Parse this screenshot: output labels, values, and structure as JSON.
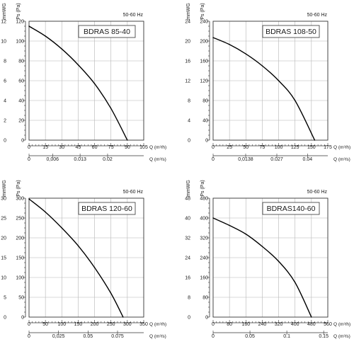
{
  "chart_data": [
    {
      "type": "line",
      "title": "BDRAS 85-40",
      "frequency_label": "50-60 Hz",
      "y_unit_left": "mmWG",
      "y_unit_right": "Ps (Pa)",
      "x_label": "Q (m³/h)",
      "x2_label": "Q (m³/s)",
      "y_left_ticks": [
        "12",
        "10",
        "8",
        "6",
        "4",
        "2",
        "0"
      ],
      "y_right_ticks": [
        "120",
        "100",
        "80",
        "60",
        "40",
        "20",
        "0"
      ],
      "x_ticks": [
        "0",
        "15",
        "30",
        "45",
        "60",
        "75",
        "90",
        "105"
      ],
      "x2_ticks": [
        "0",
        "0,006",
        "0.013",
        "0.02"
      ],
      "xlim": [
        0,
        105
      ],
      "ylim": [
        0,
        120
      ],
      "x2_values": [
        0,
        0.006,
        0.013,
        0.02
      ],
      "x2_max": 0.0292,
      "grid": true,
      "series": [
        {
          "x": [
            0,
            15,
            30,
            45,
            60,
            75,
            90
          ],
          "y": [
            115,
            105,
            92,
            76,
            57,
            32,
            0
          ]
        }
      ]
    },
    {
      "type": "line",
      "title": "BDRAS 108-50",
      "frequency_label": "50-60 Hz",
      "y_unit_left": "mmWG",
      "y_unit_right": "Ps (Pa)",
      "x_label": "Q (m³/h)",
      "x2_label": "Q (m³/s)",
      "y_left_ticks": [
        "24",
        "20",
        "16",
        "12",
        "8",
        "4",
        "0"
      ],
      "y_right_ticks": [
        "240",
        "200",
        "160",
        "120",
        "80",
        "40",
        "0"
      ],
      "x_ticks": [
        "0",
        "25",
        "50",
        "75",
        "100",
        "125",
        "150",
        "175"
      ],
      "x2_ticks": [
        "0",
        "0,0138",
        "0.027",
        "0.04"
      ],
      "xlim": [
        0,
        175
      ],
      "ylim": [
        0,
        240
      ],
      "x2_values": [
        0,
        0.0138,
        0.027,
        0.04
      ],
      "x2_max": 0.0486,
      "grid": true,
      "series": [
        {
          "x": [
            0,
            25,
            50,
            75,
            100,
            125,
            155
          ],
          "y": [
            207,
            193,
            174,
            150,
            120,
            80,
            0
          ]
        }
      ]
    },
    {
      "type": "line",
      "title": "BDRAS 120-60",
      "frequency_label": "50-60 Hz",
      "y_unit_left": "mmWG",
      "y_unit_right": "Ps (Pa)",
      "x_label": "Q (m³/h)",
      "x2_label": "Q (m³/s)",
      "y_left_ticks": [
        "30",
        "25",
        "20",
        "15",
        "10",
        "5",
        "0"
      ],
      "y_right_ticks": [
        "300",
        "250",
        "200",
        "150",
        "100",
        "50",
        "0"
      ],
      "x_ticks": [
        "0",
        "50",
        "100",
        "150",
        "200",
        "250",
        "300",
        "350"
      ],
      "x2_ticks": [
        "0",
        "0,025",
        "0.05",
        "0.075"
      ],
      "xlim": [
        0,
        350
      ],
      "ylim": [
        0,
        300
      ],
      "x2_values": [
        0,
        0.025,
        0.05,
        0.075
      ],
      "x2_max": 0.0972,
      "grid": true,
      "series": [
        {
          "x": [
            0,
            50,
            100,
            150,
            200,
            250,
            287
          ],
          "y": [
            298,
            265,
            225,
            180,
            125,
            60,
            0
          ]
        }
      ]
    },
    {
      "type": "line",
      "title": "BDRAS140-60",
      "frequency_label": "50-60 Hz",
      "y_unit_left": "mmWG",
      "y_unit_right": "Ps (Pa)",
      "x_label": "Q (m³/h)",
      "x2_label": "Q (m³/s)",
      "y_left_ticks": [
        "48",
        "40",
        "32",
        "24",
        "16",
        "8",
        "0"
      ],
      "y_right_ticks": [
        "480",
        "400",
        "320",
        "240",
        "160",
        "80",
        "0"
      ],
      "x_ticks": [
        "0",
        "80",
        "160",
        "240",
        "320",
        "400",
        "480",
        "560"
      ],
      "x2_ticks": [
        "0",
        "0.05",
        "0.1",
        "0.15"
      ],
      "xlim": [
        0,
        560
      ],
      "ylim": [
        0,
        480
      ],
      "x2_values": [
        0,
        0.05,
        0.1,
        0.15
      ],
      "x2_max": 0.1556,
      "grid": true,
      "series": [
        {
          "x": [
            0,
            80,
            160,
            240,
            320,
            400,
            480
          ],
          "y": [
            400,
            370,
            335,
            285,
            225,
            140,
            0
          ]
        }
      ]
    }
  ]
}
